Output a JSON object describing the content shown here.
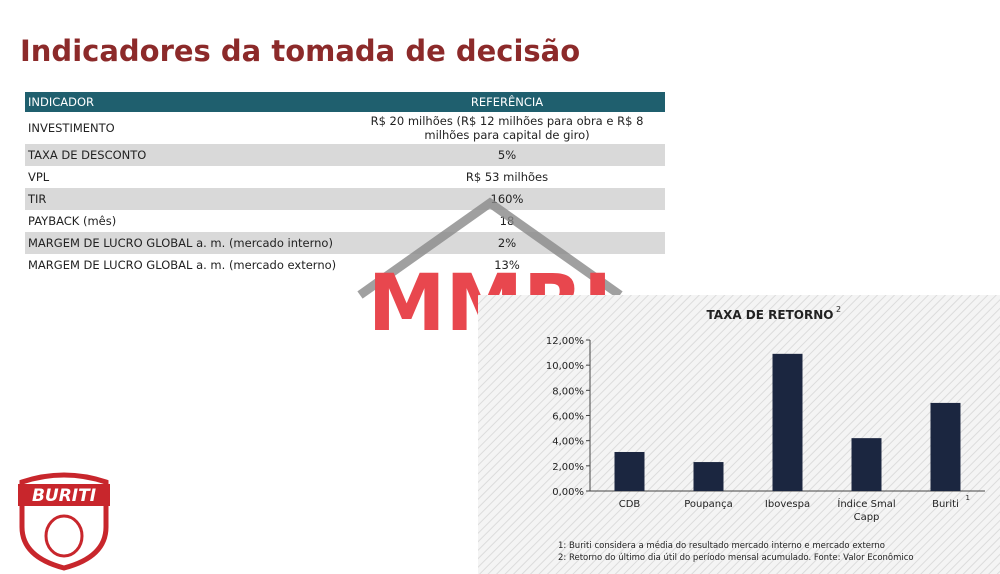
{
  "header": {
    "title": "Indicadores da tomada de decisão"
  },
  "table": {
    "columns": [
      "INDICADOR",
      "REFERÊNCIA"
    ],
    "rows": [
      [
        "INVESTIMENTO",
        "R$ 20 milhões (R$ 12 milhões para obra e R$ 8 milhões para capital de giro)"
      ],
      [
        "TAXA DE DESCONTO",
        "5%"
      ],
      [
        "VPL",
        "R$ 53 milhões"
      ],
      [
        "TIR",
        "160%"
      ],
      [
        "PAYBACK  (mês)",
        "18"
      ],
      [
        "MARGEM DE LUCRO GLOBAL a. m. (mercado interno)",
        "2%"
      ],
      [
        "MARGEM DE LUCRO GLOBAL a. m. (mercado externo)",
        "13%"
      ]
    ]
  },
  "watermark": "MMRI",
  "logo": "BURITI",
  "chart_data": {
    "type": "bar",
    "title": "TAXA DE RETORNO",
    "title_note": "2",
    "categories": [
      "CDB",
      "Poupança",
      "Ibovespa",
      "Índice Smal Capp",
      "Buriti"
    ],
    "category_notes": [
      null,
      null,
      null,
      null,
      "1"
    ],
    "values": [
      3.1,
      2.3,
      10.9,
      4.2,
      7.0
    ],
    "color": "#1b2640",
    "ylim": [
      0,
      12
    ],
    "yticks": [
      {
        "value": 0,
        "label": "0,00%"
      },
      {
        "value": 2,
        "label": "2,00%"
      },
      {
        "value": 4,
        "label": "4,00%"
      },
      {
        "value": 6,
        "label": "6,00%"
      },
      {
        "value": 8,
        "label": "8,00%"
      },
      {
        "value": 10,
        "label": "10,00%"
      },
      {
        "value": 12,
        "label": "12,00%"
      }
    ],
    "footnotes": [
      "1: Buriti considera  a média do resultado mercado interno e mercado externo",
      "2: Retorno do último dia útil do período mensal acumulado. Fonte: Valor Econômico"
    ]
  }
}
